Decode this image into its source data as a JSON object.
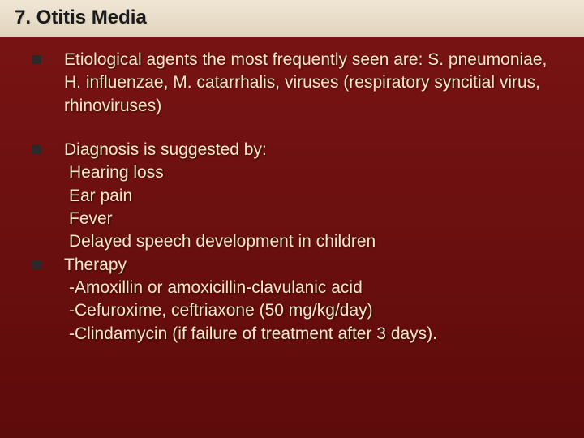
{
  "slide": {
    "title": "7. Otitis Media",
    "title_fontsize": 24,
    "body_fontsize": 21,
    "colors": {
      "header_bg_top": "#f0e6d4",
      "header_bg_bottom": "#e0d4be",
      "body_bg_top": "#7a1414",
      "body_bg_bottom": "#5e0b0b",
      "title_text": "#1a1a1a",
      "body_text": "#f5e9c8",
      "bullet_marker": "#2a2a2a"
    },
    "bullets": [
      {
        "text": "Etiological agents the most frequently seen are: S. pneumoniae, H. influenzae, M. catarrhalis, viruses (respiratory syncitial virus, rhinoviruses)",
        "sublines": []
      },
      {
        "text": "Diagnosis is suggested by:",
        "sublines": [
          "Hearing loss",
          "Ear pain",
          "Fever",
          "Delayed speech development in children"
        ]
      },
      {
        "text": "Therapy",
        "sublines": [
          "-Amoxillin or amoxicillin-clavulanic acid",
          "-Cefuroxime, ceftriaxone (50 mg/kg/day)",
          "-Clindamycin (if failure of treatment after 3 days)."
        ]
      }
    ]
  }
}
